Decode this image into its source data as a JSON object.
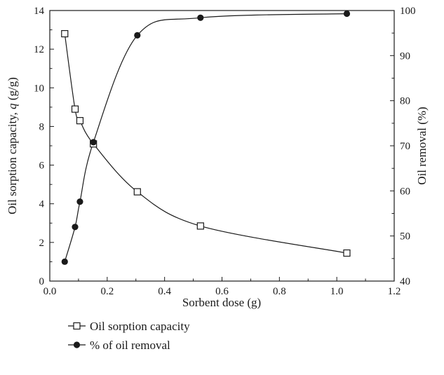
{
  "chart_data": {
    "type": "line",
    "xlabel": "Sorbent dose (g)",
    "ylabel_left_prefix": "Oil sorption capacity, ",
    "ylabel_left_var": "q",
    "ylabel_left_suffix": " (g/g)",
    "ylabel_right": "Oil removal (%)",
    "xlim": [
      0,
      1.2
    ],
    "ylim_left": [
      0,
      14
    ],
    "ylim_right": [
      40,
      100
    ],
    "xticks": [
      "0.0",
      "0.2",
      "0.4",
      "0.6",
      "0.8",
      "1.0",
      "1.2"
    ],
    "yticks_left": [
      "0",
      "2",
      "4",
      "6",
      "8",
      "10",
      "12",
      "14"
    ],
    "yticks_right": [
      "40",
      "50",
      "60",
      "70",
      "80",
      "90",
      "100"
    ],
    "grid": false,
    "legend_position": "bottom-left, below plot",
    "series": [
      {
        "name": "Oil sorption capacity",
        "axis": "left",
        "marker": "open-square",
        "x": [
          0.052,
          0.088,
          0.105,
          0.152,
          0.305,
          0.525,
          1.035
        ],
        "y": [
          12.8,
          8.9,
          8.3,
          7.1,
          4.62,
          2.85,
          1.45
        ]
      },
      {
        "name": "% of oil removal",
        "axis": "right",
        "marker": "filled-circle",
        "x": [
          0.052,
          0.088,
          0.105,
          0.152,
          0.305,
          0.525,
          1.035
        ],
        "y": [
          44.3,
          52.0,
          57.6,
          70.8,
          94.5,
          98.4,
          99.3
        ]
      }
    ]
  },
  "colors": {
    "line": "#1a1a1a",
    "background": "#ffffff"
  }
}
